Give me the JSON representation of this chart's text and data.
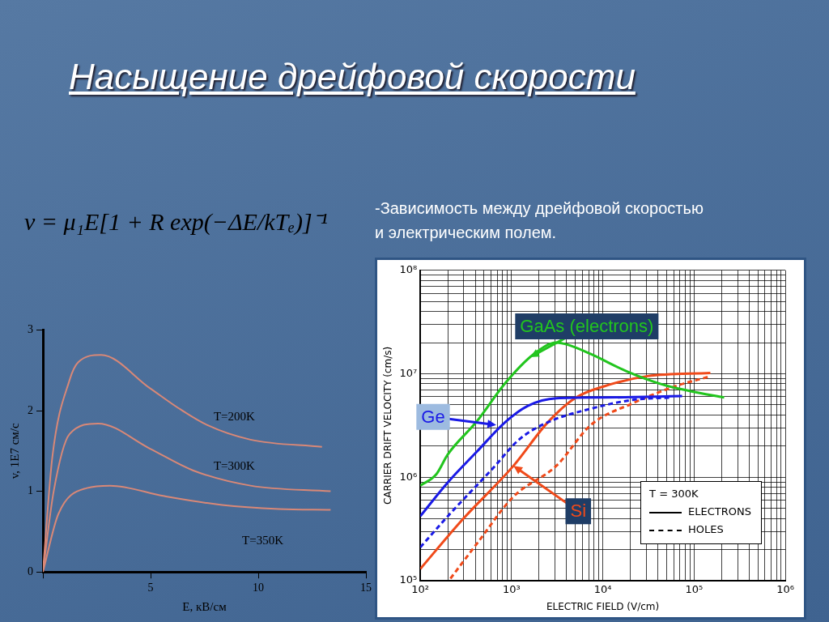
{
  "chart_data": [
    {
      "type": "line",
      "title": "Насыщение дрейфовой скорости",
      "xlabel": "E, кВ/см",
      "ylabel": "v, 1E7 см/с",
      "xlim": [
        0,
        15
      ],
      "ylim": [
        0,
        3
      ],
      "xticks": [
        {
          "value": 0,
          "label": null
        },
        5,
        10,
        15
      ],
      "yticks": [
        0,
        1,
        2,
        3
      ],
      "grid": false,
      "marker": "none",
      "annotations": [
        "v = μ₁E[1 + R exp(−ΔE/kTₑ)]⁻¹"
      ],
      "series": [
        {
          "name": "T=200K",
          "color": "#d98877",
          "x": [
            0,
            0.44,
            1.24,
            1.64,
            2.7,
            4.96,
            6.3,
            7.64,
            9.64,
            12.96
          ],
          "values": [
            0,
            1.43,
            2.38,
            2.6,
            2.69,
            2.28,
            2.03,
            1.82,
            1.64,
            1.55
          ]
        },
        {
          "name": "T=300K",
          "color": "#d98877",
          "x": [
            0,
            0.5,
            1.24,
            2.56,
            4.96,
            6.96,
            9.64,
            13.36
          ],
          "values": [
            0,
            1.0,
            1.71,
            1.84,
            1.53,
            1.26,
            1.07,
            1.0
          ]
        },
        {
          "name": "T=350K",
          "color": "#d98877",
          "x": [
            0,
            0.72,
            2.04,
            3.12,
            5.64,
            8.32,
            10.96,
            13.36
          ],
          "values": [
            0,
            0.72,
            1.04,
            1.07,
            0.94,
            0.83,
            0.78,
            0.77
          ]
        }
      ]
    },
    {
      "type": "line",
      "title": "-Зависимость между дрейфовой скоростью и электрическим полем.",
      "xlabel": "ELECTRIC FIELD (V/cm)",
      "ylabel": "CARRIER DRIFT VELOCITY (cm/s)",
      "log": "xy",
      "xlim": [
        100,
        1000000
      ],
      "ylim": [
        100000,
        100000000
      ],
      "grid": true,
      "legend_title": "T = 300K",
      "marker": "none",
      "xticks": [
        {
          "value": 100,
          "label": "10²"
        },
        {
          "value": 200,
          "label": null
        },
        {
          "value": 300,
          "label": null
        },
        {
          "value": 400,
          "label": null
        },
        {
          "value": 500,
          "label": null
        },
        {
          "value": 600,
          "label": null
        },
        {
          "value": 700,
          "label": null
        },
        {
          "value": 800,
          "label": null
        },
        {
          "value": 900,
          "label": null
        },
        {
          "value": 1000,
          "label": "10³"
        },
        {
          "value": 2000,
          "label": null
        },
        {
          "value": 3000,
          "label": null
        },
        {
          "value": 4000,
          "label": null
        },
        {
          "value": 5000,
          "label": null
        },
        {
          "value": 6000,
          "label": null
        },
        {
          "value": 7000,
          "label": null
        },
        {
          "value": 8000,
          "label": null
        },
        {
          "value": 9000,
          "label": null
        },
        {
          "value": 10000,
          "label": "10⁴"
        },
        {
          "value": 20000,
          "label": null
        },
        {
          "value": 30000,
          "label": null
        },
        {
          "value": 40000,
          "label": null
        },
        {
          "value": 50000,
          "label": null
        },
        {
          "value": 60000,
          "label": null
        },
        {
          "value": 70000,
          "label": null
        },
        {
          "value": 80000,
          "label": null
        },
        {
          "value": 90000,
          "label": null
        },
        {
          "value": 100000,
          "label": "10⁵"
        },
        {
          "value": 200000,
          "label": null
        },
        {
          "value": 300000,
          "label": null
        },
        {
          "value": 400000,
          "label": null
        },
        {
          "value": 500000,
          "label": null
        },
        {
          "value": 600000,
          "label": null
        },
        {
          "value": 700000,
          "label": null
        },
        {
          "value": 800000,
          "label": null
        },
        {
          "value": 900000,
          "label": null
        },
        {
          "value": 1000000,
          "label": "10⁶"
        }
      ],
      "yticks": [
        {
          "value": 100000,
          "label": "10⁵"
        },
        {
          "value": 200000,
          "label": null
        },
        {
          "value": 300000,
          "label": null
        },
        {
          "value": 400000,
          "label": null
        },
        {
          "value": 500000,
          "label": null
        },
        {
          "value": 600000,
          "label": null
        },
        {
          "value": 700000,
          "label": null
        },
        {
          "value": 800000,
          "label": null
        },
        {
          "value": 900000,
          "label": null
        },
        {
          "value": 1000000,
          "label": "10⁶"
        },
        {
          "value": 2000000,
          "label": null
        },
        {
          "value": 3000000,
          "label": null
        },
        {
          "value": 4000000,
          "label": null
        },
        {
          "value": 5000000,
          "label": null
        },
        {
          "value": 6000000,
          "label": null
        },
        {
          "value": 7000000,
          "label": null
        },
        {
          "value": 8000000,
          "label": null
        },
        {
          "value": 9000000,
          "label": null
        },
        {
          "value": 10000000,
          "label": "10⁷"
        },
        {
          "value": 20000000,
          "label": null
        },
        {
          "value": 30000000,
          "label": null
        },
        {
          "value": 40000000,
          "label": null
        },
        {
          "value": 50000000,
          "label": null
        },
        {
          "value": 60000000,
          "label": null
        },
        {
          "value": 70000000,
          "label": null
        },
        {
          "value": 80000000,
          "label": null
        },
        {
          "value": 90000000,
          "label": null
        },
        {
          "value": 100000000,
          "label": "10⁸"
        }
      ],
      "annotations": [
        {
          "text": "GaAs (electrons)",
          "x": 1600,
          "y": 14500000
        },
        {
          "text": "Ge",
          "x": 680,
          "y": 3200000
        },
        {
          "text": "Si",
          "x": 1050,
          "y": 1290000
        },
        "ELECTRONS",
        "HOLES"
      ],
      "series": [
        {
          "color": "#22c51e",
          "x": [
            100,
            150,
            200,
            420,
            850,
            1750,
            3100,
            4200,
            7400,
            18600,
            44700,
            91000,
            214000
          ],
          "values": [
            830000,
            1070000,
            1660000,
            3500000,
            8100000,
            15500000,
            20000000,
            19000000,
            15500000,
            10500000,
            7900000,
            6800000,
            5900000
          ]
        },
        {
          "color": "#1a1ae6",
          "x": [
            100,
            200,
            420,
            850,
            1510,
            3100,
            10500,
            74000
          ],
          "values": [
            420000,
            890000,
            1780000,
            3400000,
            4900000,
            5800000,
            5900000,
            6100000
          ]
        },
        {
          "color": "#1a1ae6",
          "line_style": "dashed",
          "x": [
            100,
            200,
            630,
            1200,
            2500,
            7400,
            21400,
            55000
          ],
          "values": [
            210000,
            420000,
            1230000,
            2300000,
            3400000,
            4600000,
            5600000,
            5900000
          ]
        },
        {
          "color": "#f04a1a",
          "x": [
            100,
            290,
            1050,
            2500,
            5100,
            10500,
            31000,
            151000
          ],
          "values": [
            130000,
            390000,
            1290000,
            3400000,
            5900000,
            7600000,
            9500000,
            10200000
          ]
        },
        {
          "color": "#f04a1a",
          "line_style": "dashed",
          "x": [
            214,
            420,
            1050,
            3100,
            7400,
            21400,
            63000,
            141000
          ],
          "values": [
            105000,
            230000,
            650000,
            1290000,
            3200000,
            5200000,
            7600000,
            9300000
          ]
        }
      ]
    }
  ]
}
